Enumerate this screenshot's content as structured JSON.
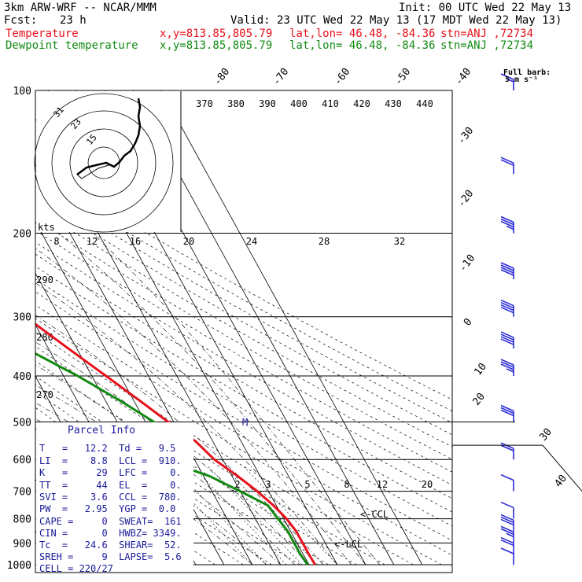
{
  "header": {
    "model": "3km ARW-WRF -- NCAR/MMM",
    "init": "Init: 00 UTC Wed 22 May 13",
    "fcst_label": "Fcst:",
    "fcst_value": "23 h",
    "valid": "Valid: 23 UTC Wed 22 May 13 (17 MDT Wed 22 May 13)",
    "temp_line": {
      "label": "Temperature",
      "xy": "x,y=813.85,805.79",
      "latlon": "lat,lon= 46.48, -84.36",
      "stn": "stn=ANJ ,72734"
    },
    "dew_line": {
      "label": "Dewpoint temperature",
      "xy": "x,y=813.85,805.79",
      "latlon": "lat,lon= 46.48, -84.36",
      "stn": "stn=ANJ ,72734"
    }
  },
  "colors": {
    "temperature": "#e8101a",
    "dewpoint": "#128a12",
    "text_info": "#1a1a9a",
    "barbs": "#2b2bd6",
    "hodograph": "#000000"
  },
  "wind_legend": {
    "title": "Full barb:",
    "value": "5 m s⁻¹"
  },
  "parcel_info": {
    "title": "Parcel Info",
    "rows": [
      "T   =   12.2  Td =   9.5",
      "LI  =    8.8  LCL =  910.",
      "K   =     29  LFC =    0.",
      "TT  =     44  EL  =    0.",
      "SVI =    3.6  CCL =  780.",
      "PW  =   2.95  YGP =  0.0",
      "CAPE =     0  SWEAT=  161",
      "CIN =      0  HWBZ= 3349.",
      "Tc  =   24.6  SHEAR=  52.",
      "SREH =     9  LAPSE=  5.6",
      "CELL = 220/27"
    ]
  },
  "annotations": {
    "ccl": "<-CCL",
    "lcl": "<-LCL",
    "mark_m": "M"
  },
  "hodograph": {
    "kts_label": "kts",
    "speed_ticks": [
      "8",
      "12",
      "16",
      "20",
      "24",
      "28",
      "32"
    ],
    "ring_labels": [
      "31",
      "23",
      "15"
    ]
  },
  "chart_data": {
    "type": "line",
    "title": "",
    "xlabel": "",
    "ylabel": "",
    "y_scale": "log-pressure (inverted)",
    "y_ticks": [
      100,
      200,
      300,
      400,
      500,
      600,
      700,
      800,
      900,
      1000
    ],
    "isotherm_labels_top": [
      "-80",
      "-70",
      "-60",
      "-50",
      "-40"
    ],
    "isotherm_labels_right": [
      "-30",
      "-20",
      "-10",
      "0",
      "10",
      "20",
      "30",
      "40"
    ],
    "theta_labels": [
      "370",
      "380",
      "390",
      "400",
      "410",
      "420",
      "430",
      "440"
    ],
    "theta_labels_left": [
      "290",
      "280",
      "270"
    ],
    "mixing_ratio_labels": [
      "2",
      "3",
      "5",
      "8",
      "12",
      "20"
    ],
    "series": [
      {
        "name": "Temperature",
        "pressure": [
          100,
          130,
          150,
          170,
          200,
          250,
          300,
          350,
          400,
          450,
          500,
          550,
          600,
          650,
          700,
          750,
          800,
          850,
          900,
          950,
          1000
        ],
        "temp_c": [
          -61,
          -62,
          -61,
          -62,
          -58,
          -51,
          -42,
          -33,
          -25,
          -18,
          -12,
          -6,
          -3,
          2,
          6,
          9,
          11,
          12,
          12,
          12,
          12.2
        ]
      },
      {
        "name": "Dewpoint temperature",
        "pressure": [
          100,
          120,
          150,
          170,
          200,
          220,
          250,
          300,
          350,
          400,
          450,
          500,
          550,
          600,
          650,
          700,
          750,
          800,
          850,
          900,
          950,
          1000
        ],
        "dewp_c": [
          -79,
          -82,
          -83,
          -85,
          -80,
          -74,
          -68,
          -56,
          -48,
          -35,
          -25,
          -17,
          -14,
          -22,
          -8,
          0,
          7,
          8,
          9,
          9,
          9,
          9.5
        ]
      }
    ],
    "wind_barbs_kt": [
      {
        "p": 100,
        "speed": 15
      },
      {
        "p": 150,
        "speed": 20
      },
      {
        "p": 200,
        "speed": 35
      },
      {
        "p": 250,
        "speed": 40
      },
      {
        "p": 300,
        "speed": 40
      },
      {
        "p": 350,
        "speed": 40
      },
      {
        "p": 400,
        "speed": 35
      },
      {
        "p": 500,
        "speed": 30
      },
      {
        "p": 600,
        "speed": 20
      },
      {
        "p": 700,
        "speed": 10
      },
      {
        "p": 800,
        "speed": 10
      },
      {
        "p": 850,
        "speed": 30
      },
      {
        "p": 900,
        "speed": 25
      },
      {
        "p": 950,
        "speed": 20
      },
      {
        "p": 1000,
        "speed": 10
      }
    ]
  }
}
